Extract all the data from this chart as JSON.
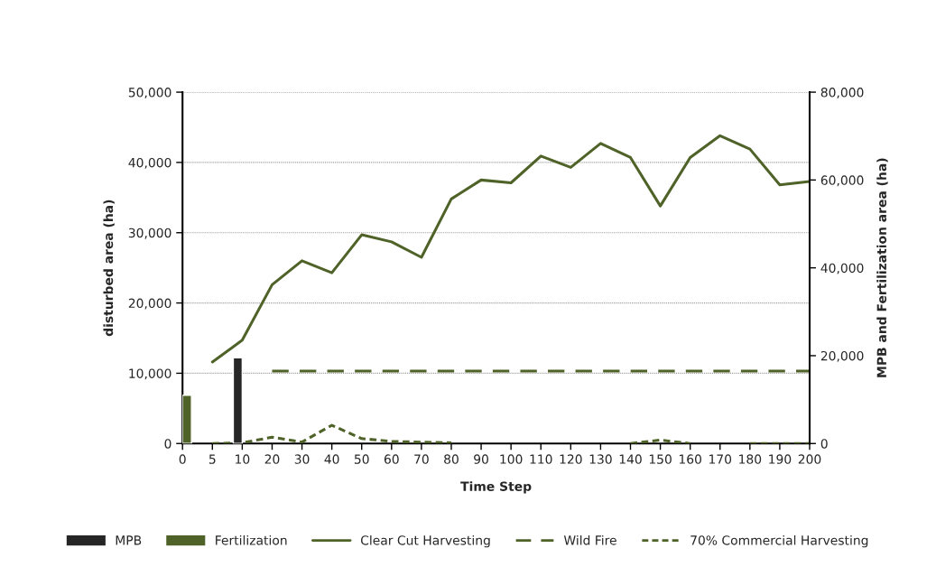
{
  "chart_data": {
    "type": "line",
    "xlabel": "Time Step",
    "ylabel": "disturbed area (ha)",
    "y2label": "MPB and Fertilization area (ha)",
    "categories": [
      "0",
      "5",
      "10",
      "20",
      "30",
      "40",
      "50",
      "60",
      "70",
      "80",
      "90",
      "100",
      "110",
      "120",
      "130",
      "140",
      "150",
      "160",
      "170",
      "180",
      "190",
      "200"
    ],
    "series": [
      {
        "name": "MPB",
        "type": "bar",
        "axis": "y2",
        "color": "#262626",
        "values": [
          null,
          null,
          19500,
          null,
          null,
          null,
          null,
          null,
          null,
          null,
          null,
          null,
          null,
          null,
          null,
          null,
          null,
          null,
          null,
          null,
          null,
          null
        ]
      },
      {
        "name": "Fertilization",
        "type": "bar",
        "axis": "y2",
        "color": "#4f6228",
        "values": [
          11000,
          null,
          null,
          null,
          null,
          null,
          null,
          null,
          null,
          null,
          null,
          null,
          null,
          null,
          null,
          null,
          null,
          null,
          null,
          null,
          null,
          null
        ]
      },
      {
        "name": "Clear Cut Harvesting",
        "line_style": "solid",
        "color": "#4f6228",
        "values": [
          null,
          11600,
          14700,
          22600,
          26000,
          24300,
          29700,
          28700,
          26500,
          34800,
          37500,
          37100,
          40900,
          39300,
          42700,
          40700,
          33800,
          40700,
          43800,
          41900,
          36800,
          37300
        ]
      },
      {
        "name": "Wild Fire",
        "line_style": "dashed",
        "color": "#4f6228",
        "values": [
          null,
          null,
          null,
          10300,
          10300,
          10300,
          10300,
          10300,
          10300,
          10300,
          10300,
          10300,
          10300,
          10300,
          10300,
          10300,
          10300,
          10300,
          10300,
          10300,
          10300,
          10300
        ]
      },
      {
        "name": "70% Commercial Harvesting",
        "line_style": "dotted",
        "color": "#4f6228",
        "values": [
          null,
          0,
          100,
          900,
          200,
          2600,
          700,
          300,
          200,
          100,
          null,
          null,
          null,
          null,
          null,
          0,
          500,
          0,
          null,
          0,
          0,
          0
        ]
      }
    ],
    "ylim": [
      0,
      50000
    ],
    "yticks": [
      {
        "value": 0,
        "label": "0"
      },
      {
        "value": 10000,
        "label": "10,000"
      },
      {
        "value": 20000,
        "label": "20,000"
      },
      {
        "value": 30000,
        "label": "30,000"
      },
      {
        "value": 40000,
        "label": "40,000"
      },
      {
        "value": 50000,
        "label": "50,000"
      }
    ],
    "y2lim": [
      0,
      80000
    ],
    "y2ticks": [
      {
        "value": 0,
        "label": "0"
      },
      {
        "value": 20000,
        "label": "20,000"
      },
      {
        "value": 40000,
        "label": "40,000"
      },
      {
        "value": 60000,
        "label": "60,000"
      },
      {
        "value": 80000,
        "label": "80,000"
      }
    ],
    "grid": "y",
    "legend": "bottom"
  }
}
